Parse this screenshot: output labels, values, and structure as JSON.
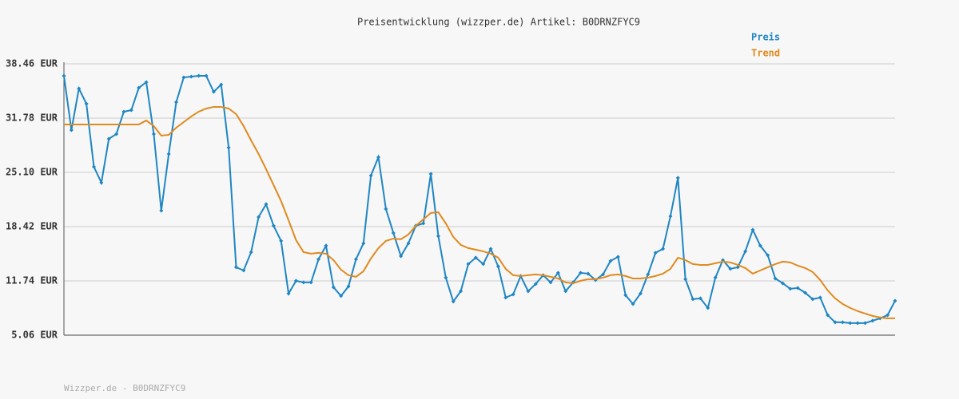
{
  "chart_data": {
    "type": "line",
    "title": "Preisentwicklung (wizzper.de) Artikel: B0DRNZFYC9",
    "source": "Wizzper.de - B0DRNZFYC9",
    "ylim": [
      5.06,
      38.46
    ],
    "yticks": [
      {
        "value": 5.06,
        "label": "5.06 EUR"
      },
      {
        "value": 11.74,
        "label": "11.74 EUR"
      },
      {
        "value": 18.42,
        "label": "18.42 EUR"
      },
      {
        "value": 25.1,
        "label": "25.10 EUR"
      },
      {
        "value": 31.78,
        "label": "31.78 EUR"
      },
      {
        "value": 38.46,
        "label": "38.46 EUR"
      }
    ],
    "grid": true,
    "legend": "top-right",
    "series": [
      {
        "name": "Preis",
        "color": "#1f86c4",
        "markers": true,
        "values": [
          36.99,
          30.31,
          35.42,
          33.55,
          25.79,
          23.83,
          29.23,
          29.82,
          32.57,
          32.76,
          35.51,
          36.2,
          29.82,
          20.39,
          27.36,
          33.75,
          36.79,
          36.89,
          36.99,
          36.99,
          35.02,
          35.91,
          28.15,
          13.42,
          13.03,
          15.28,
          19.61,
          21.18,
          18.53,
          16.66,
          10.18,
          11.75,
          11.55,
          11.55,
          14.4,
          16.07,
          10.96,
          9.88,
          11.06,
          14.4,
          16.36,
          24.71,
          26.97,
          20.59,
          17.64,
          14.79,
          16.36,
          18.53,
          18.82,
          24.91,
          17.25,
          12.14,
          9.2,
          10.47,
          13.81,
          14.6,
          13.81,
          15.68,
          13.52,
          9.69,
          10.08,
          12.34,
          10.47,
          11.36,
          12.44,
          11.55,
          12.73,
          10.47,
          11.55,
          12.73,
          12.63,
          11.85,
          12.54,
          14.2,
          14.7,
          9.98,
          8.9,
          10.18,
          12.54,
          15.19,
          15.68,
          19.7,
          24.42,
          11.95,
          9.49,
          9.59,
          8.41,
          12.14,
          14.3,
          13.22,
          13.42,
          15.38,
          18.03,
          16.07,
          14.89,
          12.04,
          11.45,
          10.77,
          10.87,
          10.28,
          9.49,
          9.69,
          7.53,
          6.64,
          6.64,
          6.54,
          6.54,
          6.54,
          6.84,
          7.13,
          7.53,
          9.29
        ]
      },
      {
        "name": "Trend",
        "color": "#e08a1e",
        "markers": false,
        "values": [
          31.0,
          31.0,
          31.0,
          31.0,
          31.0,
          31.0,
          31.0,
          31.0,
          31.0,
          31.0,
          31.0,
          31.49,
          30.8,
          29.62,
          29.72,
          30.6,
          31.29,
          31.98,
          32.57,
          32.96,
          33.16,
          33.16,
          32.96,
          32.27,
          30.8,
          29.03,
          27.36,
          25.5,
          23.53,
          21.57,
          19.21,
          16.76,
          15.28,
          15.09,
          15.19,
          15.09,
          14.3,
          13.12,
          12.44,
          12.24,
          12.93,
          14.5,
          15.78,
          16.66,
          16.95,
          16.86,
          17.45,
          18.53,
          19.31,
          20.1,
          20.19,
          18.82,
          17.15,
          16.17,
          15.78,
          15.58,
          15.38,
          15.09,
          14.6,
          13.22,
          12.44,
          12.34,
          12.44,
          12.54,
          12.44,
          12.24,
          12.04,
          11.55,
          11.45,
          11.75,
          11.95,
          11.95,
          12.14,
          12.44,
          12.54,
          12.34,
          12.04,
          12.04,
          12.14,
          12.34,
          12.63,
          13.22,
          14.6,
          14.3,
          13.81,
          13.71,
          13.71,
          13.91,
          14.11,
          14.01,
          13.71,
          13.32,
          12.63,
          13.03,
          13.42,
          13.81,
          14.11,
          14.01,
          13.62,
          13.32,
          12.83,
          11.85,
          10.57,
          9.59,
          8.9,
          8.41,
          8.02,
          7.72,
          7.43,
          7.23,
          7.13,
          7.13
        ]
      }
    ]
  }
}
